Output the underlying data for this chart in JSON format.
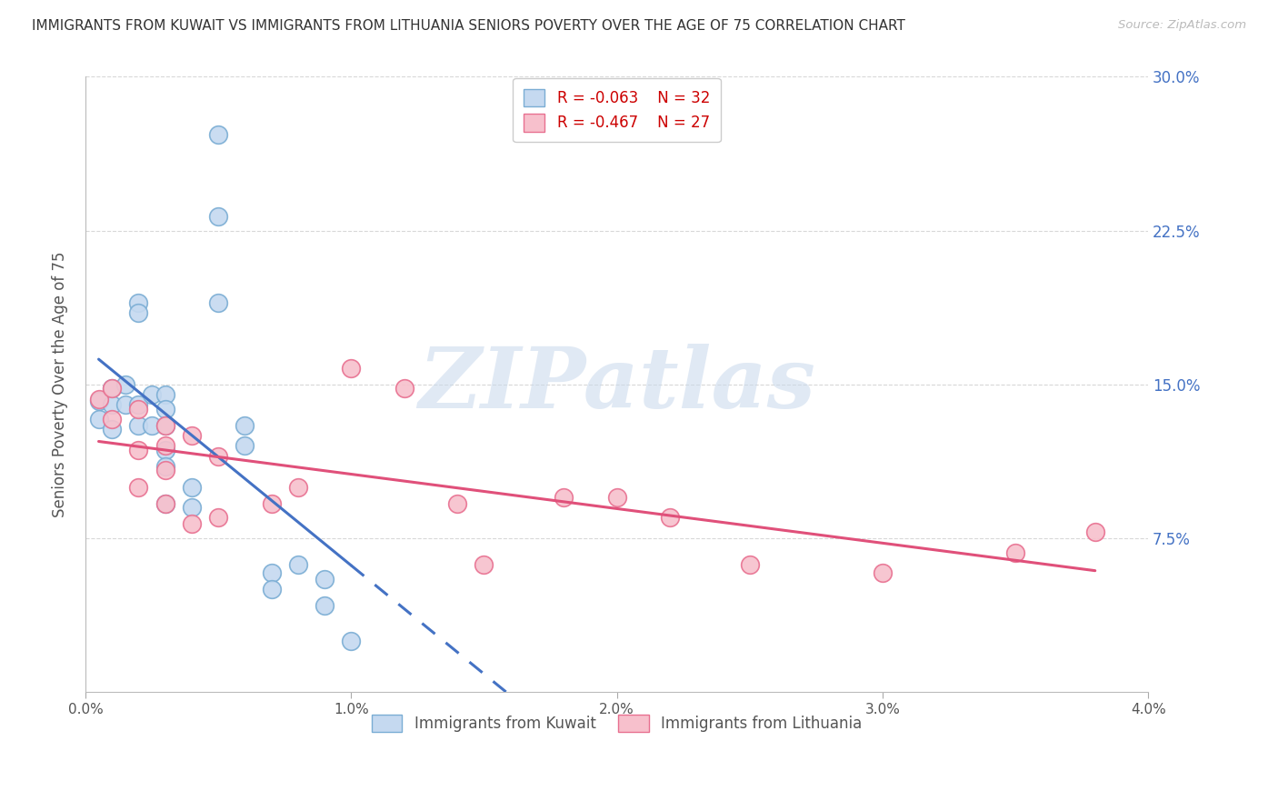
{
  "title": "IMMIGRANTS FROM KUWAIT VS IMMIGRANTS FROM LITHUANIA SENIORS POVERTY OVER THE AGE OF 75 CORRELATION CHART",
  "source": "Source: ZipAtlas.com",
  "ylabel": "Seniors Poverty Over the Age of 75",
  "xmin": 0.0,
  "xmax": 0.04,
  "ymin": 0.0,
  "ymax": 0.3,
  "yticks": [
    0.075,
    0.15,
    0.225,
    0.3
  ],
  "ytick_labels": [
    "7.5%",
    "15.0%",
    "22.5%",
    "30.0%"
  ],
  "xtick_vals": [
    0.0,
    0.01,
    0.02,
    0.03,
    0.04
  ],
  "xtick_labels": [
    "0.0%",
    "1.0%",
    "2.0%",
    "3.0%",
    "4.0%"
  ],
  "watermark": "ZIPatlas",
  "kuwait_R": -0.063,
  "kuwait_N": 32,
  "lithuania_R": -0.467,
  "lithuania_N": 27,
  "kuwait_color": "#c5d9f0",
  "kuwait_edge": "#7aadd4",
  "lithuania_color": "#f7c0cc",
  "lithuania_edge": "#e87090",
  "kuwait_line_color": "#4472c4",
  "lithuania_line_color": "#e0507a",
  "background_color": "#ffffff",
  "grid_color": "#d8d8d8",
  "kuwait_points_x": [
    0.0005,
    0.0005,
    0.001,
    0.001,
    0.001,
    0.0015,
    0.0015,
    0.002,
    0.002,
    0.002,
    0.002,
    0.0025,
    0.0025,
    0.003,
    0.003,
    0.003,
    0.003,
    0.003,
    0.003,
    0.004,
    0.004,
    0.005,
    0.005,
    0.005,
    0.006,
    0.006,
    0.007,
    0.007,
    0.008,
    0.009,
    0.009,
    0.01
  ],
  "kuwait_points_y": [
    0.142,
    0.133,
    0.148,
    0.14,
    0.128,
    0.15,
    0.14,
    0.19,
    0.185,
    0.14,
    0.13,
    0.145,
    0.13,
    0.145,
    0.138,
    0.13,
    0.118,
    0.11,
    0.092,
    0.1,
    0.09,
    0.232,
    0.272,
    0.19,
    0.13,
    0.12,
    0.058,
    0.05,
    0.062,
    0.055,
    0.042,
    0.025
  ],
  "lithuania_points_x": [
    0.0005,
    0.001,
    0.001,
    0.002,
    0.002,
    0.002,
    0.003,
    0.003,
    0.003,
    0.003,
    0.004,
    0.004,
    0.005,
    0.005,
    0.007,
    0.008,
    0.01,
    0.012,
    0.014,
    0.015,
    0.018,
    0.02,
    0.022,
    0.025,
    0.03,
    0.035,
    0.038
  ],
  "lithuania_points_y": [
    0.143,
    0.148,
    0.133,
    0.138,
    0.118,
    0.1,
    0.13,
    0.12,
    0.108,
    0.092,
    0.125,
    0.082,
    0.115,
    0.085,
    0.092,
    0.1,
    0.158,
    0.148,
    0.092,
    0.062,
    0.095,
    0.095,
    0.085,
    0.062,
    0.058,
    0.068,
    0.078
  ]
}
